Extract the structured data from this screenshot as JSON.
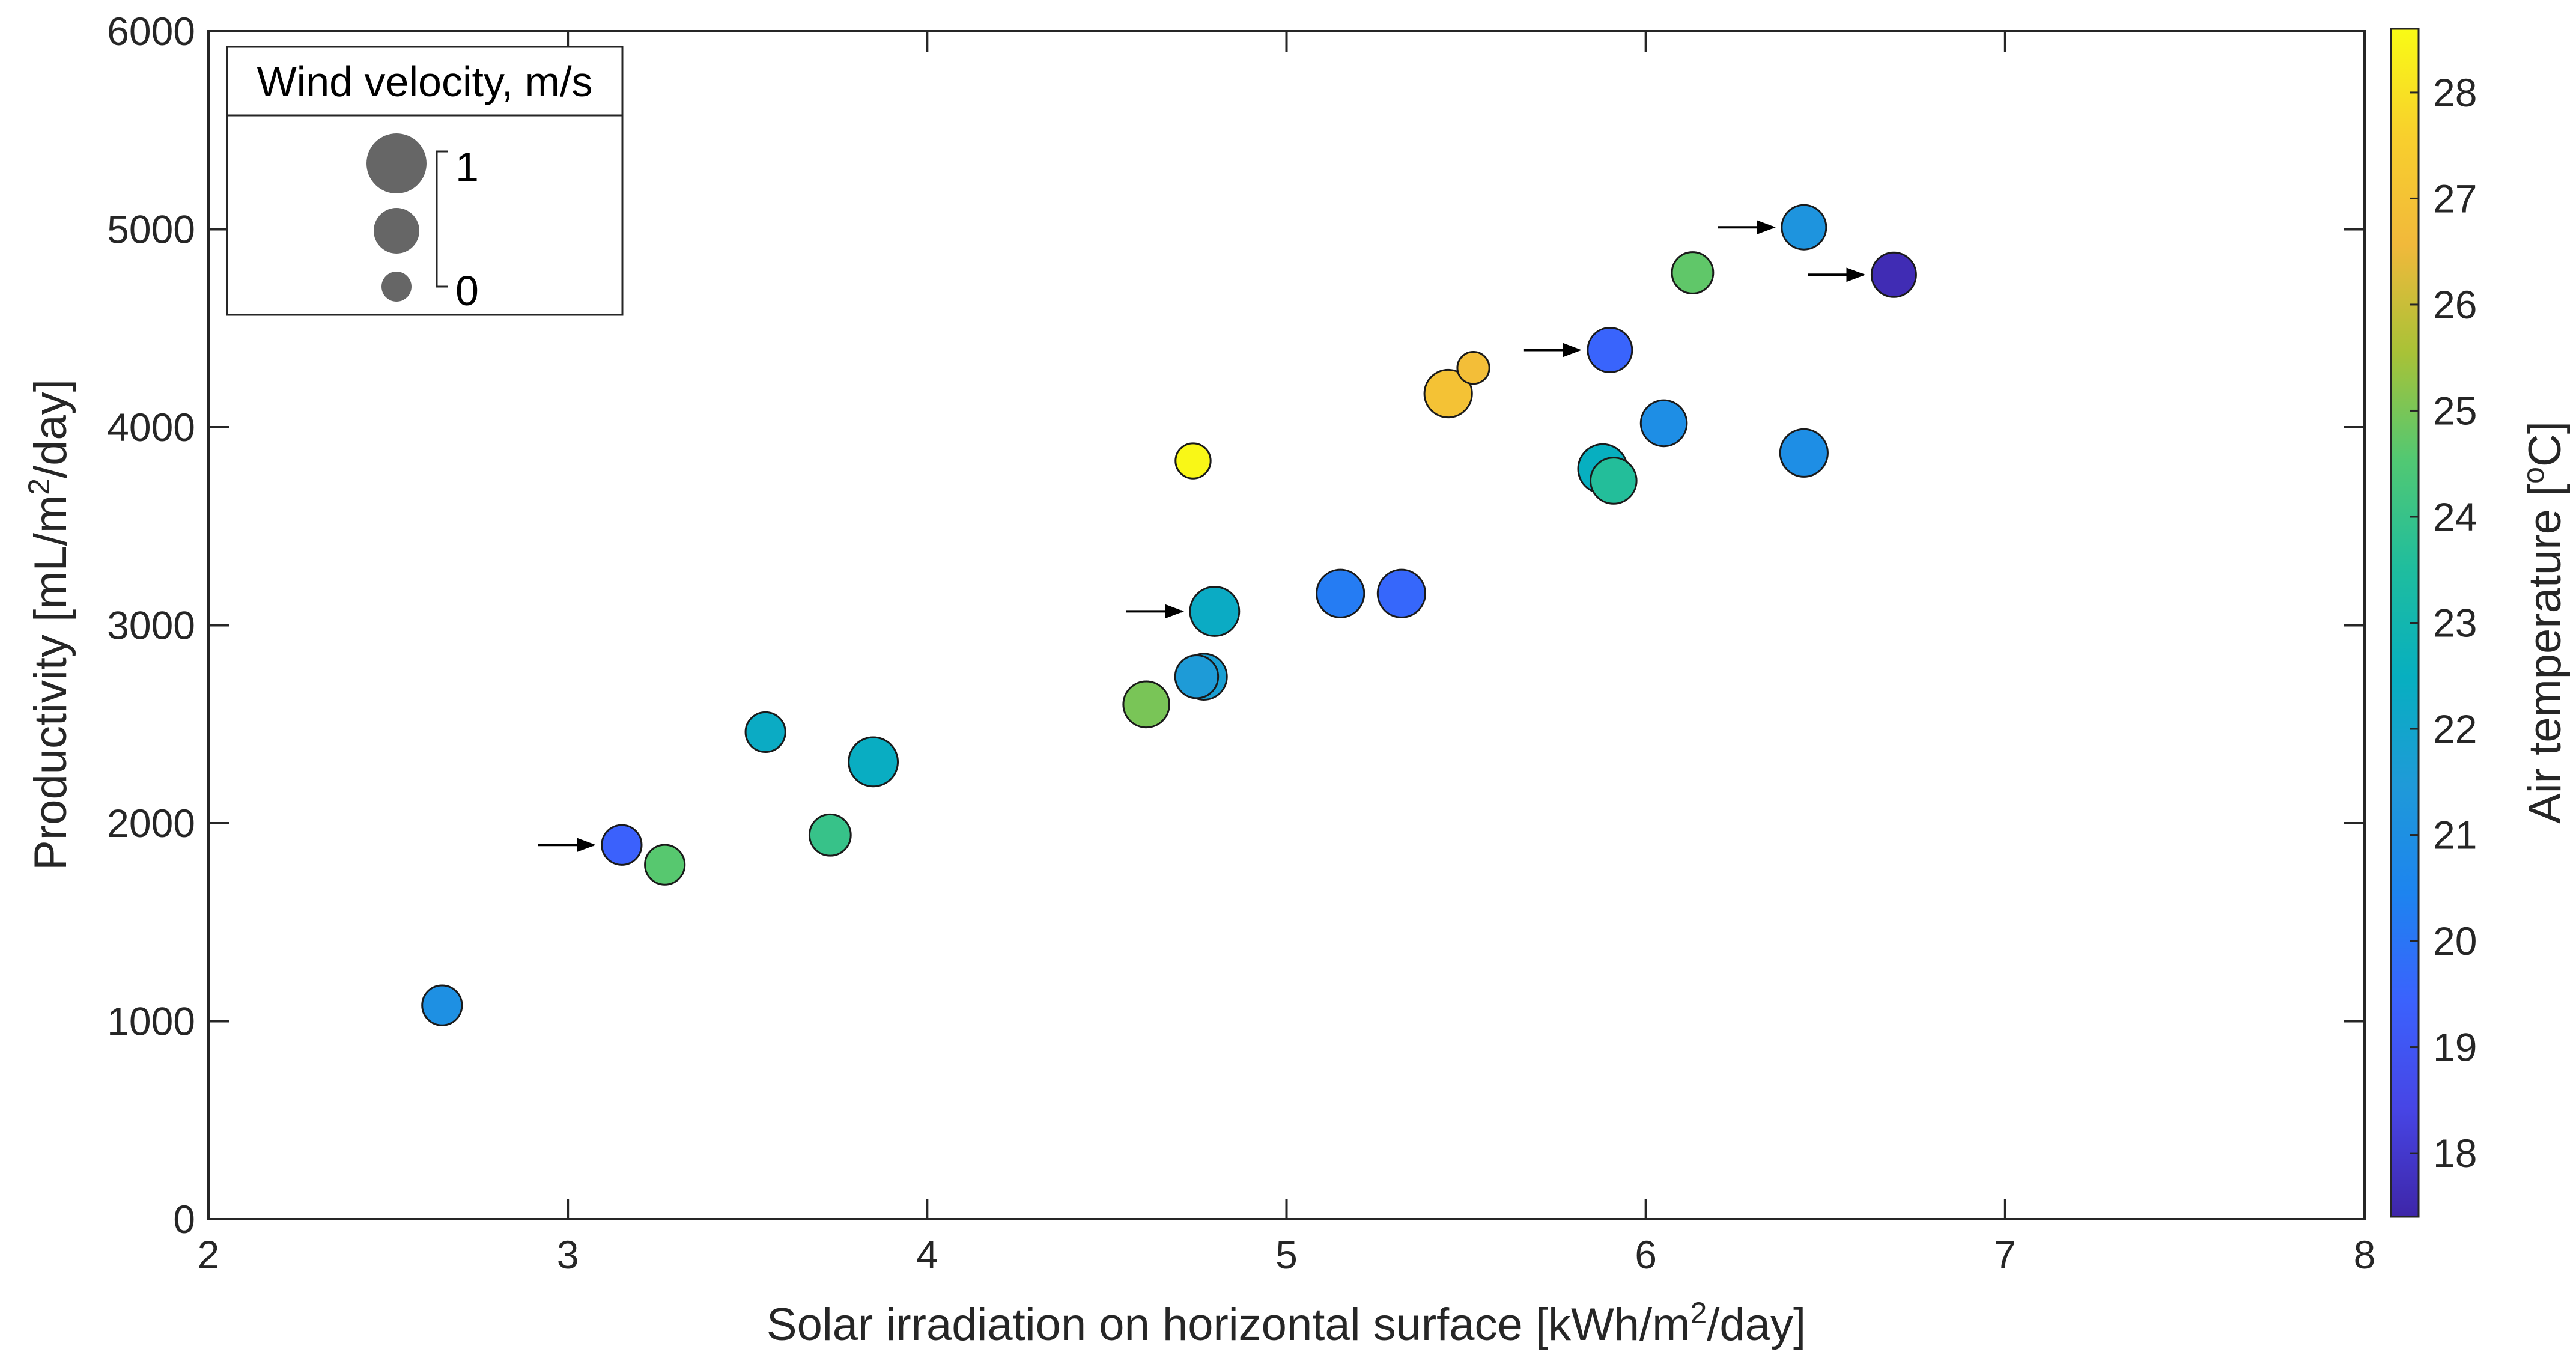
{
  "chart_data": {
    "type": "scatter",
    "xlabel": {
      "pre": "Solar irradiation on horizontal surface [kWh/m",
      "sup": "2",
      "post": "/day]"
    },
    "ylabel": {
      "pre": "Productivity [mL/m",
      "sup": "2",
      "post": "/day]"
    },
    "xlim": [
      2,
      8
    ],
    "ylim": [
      0,
      6000
    ],
    "xticks": [
      2,
      3,
      4,
      5,
      6,
      7,
      8
    ],
    "yticks": [
      0,
      1000,
      2000,
      3000,
      4000,
      5000,
      6000
    ],
    "colorbar": {
      "label": {
        "pre": "Air temperature [",
        "sup": "o",
        "post": "C]"
      },
      "range": [
        17.4,
        28.6
      ],
      "ticks": [
        18,
        19,
        20,
        21,
        22,
        23,
        24,
        25,
        26,
        27,
        28
      ],
      "colormap": [
        "#3e26a8",
        "#4745e5",
        "#3b62fd",
        "#1d84ef",
        "#1f9ad8",
        "#07afc0",
        "#1fbd9e",
        "#51c873",
        "#a8c237",
        "#f1b93b",
        "#f8cf2d",
        "#f9fb15"
      ]
    },
    "size_legend": {
      "title": "Wind velocity, m/s",
      "max_label": "1",
      "min_label": "0",
      "marker_fill": "#666666"
    },
    "points": [
      {
        "x": 2.65,
        "y": 1080,
        "temp": 21.0,
        "wind": 0.35
      },
      {
        "x": 3.15,
        "y": 1890,
        "temp": 19.4,
        "wind": 0.35,
        "arrow": true
      },
      {
        "x": 3.27,
        "y": 1790,
        "temp": 24.6,
        "wind": 0.35
      },
      {
        "x": 3.55,
        "y": 2460,
        "temp": 22.3,
        "wind": 0.35
      },
      {
        "x": 3.73,
        "y": 1940,
        "temp": 24.0,
        "wind": 0.4
      },
      {
        "x": 3.85,
        "y": 2310,
        "temp": 22.4,
        "wind": 0.65
      },
      {
        "x": 4.61,
        "y": 2600,
        "temp": 25.0,
        "wind": 0.55
      },
      {
        "x": 4.74,
        "y": 3830,
        "temp": 28.5,
        "wind": 0.2
      },
      {
        "x": 4.77,
        "y": 2740,
        "temp": 21.7,
        "wind": 0.55
      },
      {
        "x": 4.75,
        "y": 2740,
        "temp": 21.5,
        "wind": 0.45
      },
      {
        "x": 4.8,
        "y": 3070,
        "temp": 22.3,
        "wind": 0.65,
        "arrow": true
      },
      {
        "x": 5.15,
        "y": 3160,
        "temp": 20.2,
        "wind": 0.6
      },
      {
        "x": 5.32,
        "y": 3160,
        "temp": 19.6,
        "wind": 0.6
      },
      {
        "x": 5.45,
        "y": 4170,
        "temp": 27.0,
        "wind": 0.6
      },
      {
        "x": 5.52,
        "y": 4300,
        "temp": 26.8,
        "wind": 0.1
      },
      {
        "x": 5.9,
        "y": 4390,
        "temp": 19.5,
        "wind": 0.5,
        "arrow": true
      },
      {
        "x": 5.88,
        "y": 3790,
        "temp": 22.5,
        "wind": 0.65
      },
      {
        "x": 5.91,
        "y": 3730,
        "temp": 23.6,
        "wind": 0.55
      },
      {
        "x": 6.05,
        "y": 4020,
        "temp": 20.9,
        "wind": 0.55
      },
      {
        "x": 6.13,
        "y": 4780,
        "temp": 24.7,
        "wind": 0.4
      },
      {
        "x": 6.44,
        "y": 5010,
        "temp": 21.2,
        "wind": 0.5,
        "arrow": true
      },
      {
        "x": 6.44,
        "y": 3870,
        "temp": 20.9,
        "wind": 0.6
      },
      {
        "x": 6.69,
        "y": 4770,
        "temp": 17.6,
        "wind": 0.5,
        "arrow": true
      }
    ]
  }
}
